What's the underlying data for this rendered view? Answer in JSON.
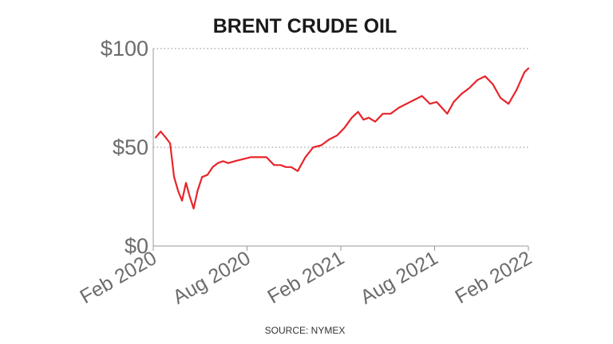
{
  "chart_data": {
    "type": "line",
    "title": "BRENT CRUDE OIL",
    "source": "SOURCE: NYMEX",
    "xlabel": "",
    "ylabel": "",
    "x_ticks": [
      "Feb 2020",
      "Aug 2020",
      "Feb 2021",
      "Aug 2021",
      "Feb 2022"
    ],
    "y_ticks": [
      "$0",
      "$50",
      "$100"
    ],
    "y_tick_values": [
      0,
      50,
      100
    ],
    "ylim": [
      0,
      100
    ],
    "xlim": [
      "2020-02",
      "2022-02"
    ],
    "grid": "horizontal dotted at $50 and $100",
    "colors": {
      "line": "#e8242a",
      "text": "#6b6b6b",
      "title": "#1a1a1a"
    },
    "series": [
      {
        "color": "#e8242a",
        "x": [
          "2020-02",
          "2020-02",
          "2020-02",
          "2020-03",
          "2020-03",
          "2020-03",
          "2020-03",
          "2020-04",
          "2020-04",
          "2020-04",
          "2020-04",
          "2020-05",
          "2020-05",
          "2020-05",
          "2020-06",
          "2020-06",
          "2020-06",
          "2020-07",
          "2020-07",
          "2020-08",
          "2020-08",
          "2020-09",
          "2020-09",
          "2020-10",
          "2020-10",
          "2020-10",
          "2020-11",
          "2020-11",
          "2020-12",
          "2020-12",
          "2021-01",
          "2021-01",
          "2021-02",
          "2021-02",
          "2021-03",
          "2021-03",
          "2021-03",
          "2021-04",
          "2021-04",
          "2021-05",
          "2021-05",
          "2021-06",
          "2021-06",
          "2021-07",
          "2021-07",
          "2021-08",
          "2021-08",
          "2021-08",
          "2021-09",
          "2021-09",
          "2021-10",
          "2021-10",
          "2021-11",
          "2021-11",
          "2021-12",
          "2021-12",
          "2022-01",
          "2022-01",
          "2022-02"
        ],
        "values": [
          55,
          58,
          55,
          52,
          35,
          28,
          23,
          32,
          25,
          19,
          28,
          35,
          36,
          40,
          42,
          43,
          42,
          43,
          44,
          45,
          45,
          45,
          41,
          41,
          40,
          40,
          38,
          45,
          50,
          51,
          54,
          56,
          60,
          65,
          68,
          64,
          65,
          63,
          67,
          67,
          70,
          72,
          74,
          76,
          72,
          73,
          70,
          67,
          73,
          77,
          80,
          84,
          86,
          82,
          75,
          72,
          79,
          88,
          90
        ]
      }
    ]
  }
}
